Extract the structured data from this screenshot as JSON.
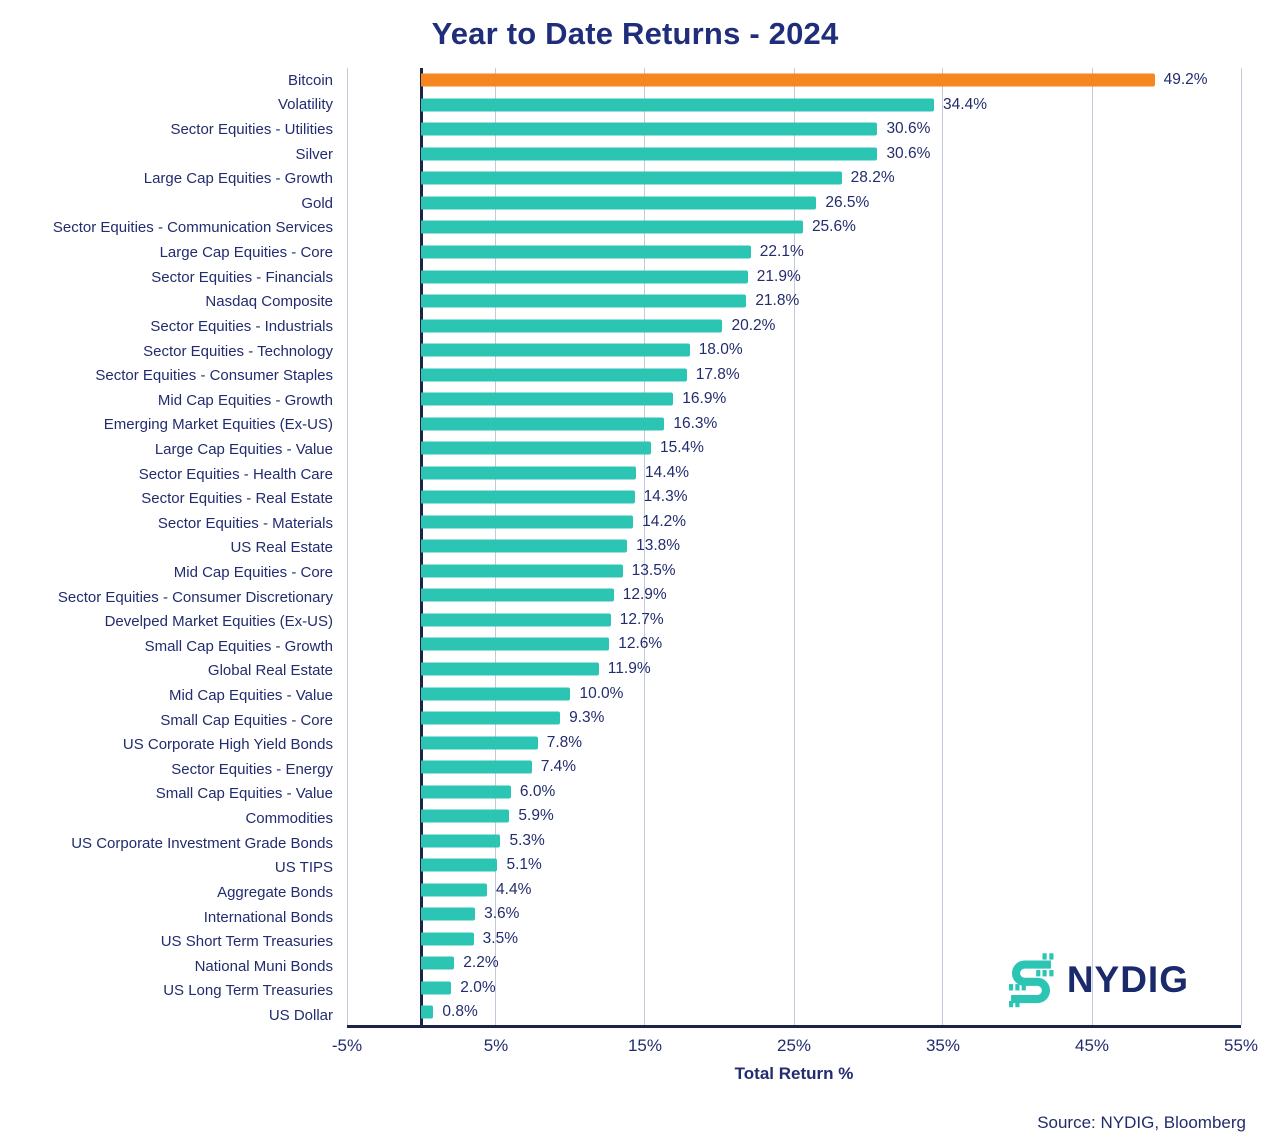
{
  "title": "Year to Date Returns - 2024",
  "chart_data": {
    "type": "bar",
    "orientation": "horizontal",
    "title": "Year to Date Returns - 2024",
    "xlabel": "Total Return %",
    "xlim": [
      -5,
      55
    ],
    "grid": true,
    "legend": "none",
    "categories": [
      "Bitcoin",
      "Volatility",
      "Sector Equities - Utilities",
      "Silver",
      "Large Cap Equities - Growth",
      "Gold",
      "Sector Equities - Communication Services",
      "Large Cap Equities - Core",
      "Sector Equities - Financials",
      "Nasdaq Composite",
      "Sector Equities - Industrials",
      "Sector Equities - Technology",
      "Sector Equities - Consumer Staples",
      "Mid Cap Equities - Growth",
      "Emerging Market Equities (Ex-US)",
      "Large Cap Equities - Value",
      "Sector Equities - Health Care",
      "Sector Equities - Real Estate",
      "Sector Equities - Materials",
      "US Real Estate",
      "Mid Cap Equities - Core",
      "Sector Equities - Consumer Discretionary",
      "Develped Market Equities (Ex-US)",
      "Small Cap Equities - Growth",
      "Global Real Estate",
      "Mid Cap Equities - Value",
      "Small Cap Equities - Core",
      "US Corporate High Yield Bonds",
      "Sector Equities - Energy",
      "Small Cap Equities - Value",
      "Commodities",
      "US Corporate Investment Grade Bonds",
      "US TIPS",
      "Aggregate Bonds",
      "International Bonds",
      "US Short Term Treasuries",
      "National Muni Bonds",
      "US Long Term Treasuries",
      "US Dollar"
    ],
    "values": [
      49.2,
      34.4,
      30.6,
      30.6,
      28.2,
      26.5,
      25.6,
      22.1,
      21.9,
      21.8,
      20.2,
      18.0,
      17.8,
      16.9,
      16.3,
      15.4,
      14.4,
      14.3,
      14.2,
      13.8,
      13.5,
      12.9,
      12.7,
      12.6,
      11.9,
      10.0,
      9.3,
      7.8,
      7.4,
      6.0,
      5.9,
      5.3,
      5.1,
      4.4,
      3.6,
      3.5,
      2.2,
      2.0,
      0.8
    ],
    "value_labels": [
      "49.2%",
      "34.4%",
      "30.6%",
      "30.6%",
      "28.2%",
      "26.5%",
      "25.6%",
      "22.1%",
      "21.9%",
      "21.8%",
      "20.2%",
      "18.0%",
      "17.8%",
      "16.9%",
      "16.3%",
      "15.4%",
      "14.4%",
      "14.3%",
      "14.2%",
      "13.8%",
      "13.5%",
      "12.9%",
      "12.7%",
      "12.6%",
      "11.9%",
      "10.0%",
      "9.3%",
      "7.8%",
      "7.4%",
      "6.0%",
      "5.9%",
      "5.3%",
      "5.1%",
      "4.4%",
      "3.6%",
      "3.5%",
      "2.2%",
      "2.0%",
      "0.8%"
    ],
    "highlight_index": 0,
    "xticks": [
      {
        "label": "-5%",
        "value": -5
      },
      {
        "label": "5%",
        "value": 5
      },
      {
        "label": "15%",
        "value": 15
      },
      {
        "label": "25%",
        "value": 25
      },
      {
        "label": "35%",
        "value": 35
      },
      {
        "label": "45%",
        "value": 45
      },
      {
        "label": "55%",
        "value": 55
      }
    ],
    "colors": {
      "bar": "#2cc5b4",
      "highlight": "#f6861f",
      "gridline": "#c2c9da",
      "zero_line": "#1b2447",
      "axis": "#1b2447",
      "text": "#222c6e",
      "title": "#1f2d7a"
    }
  },
  "footer": {
    "source": "Source: NYDIG, Bloomberg"
  },
  "logo": {
    "wordmark": "NYDIG",
    "icon": "nydig-dollar-glyph",
    "icon_color": "#2cc5b4",
    "wordmark_color": "#1b2a6b"
  }
}
